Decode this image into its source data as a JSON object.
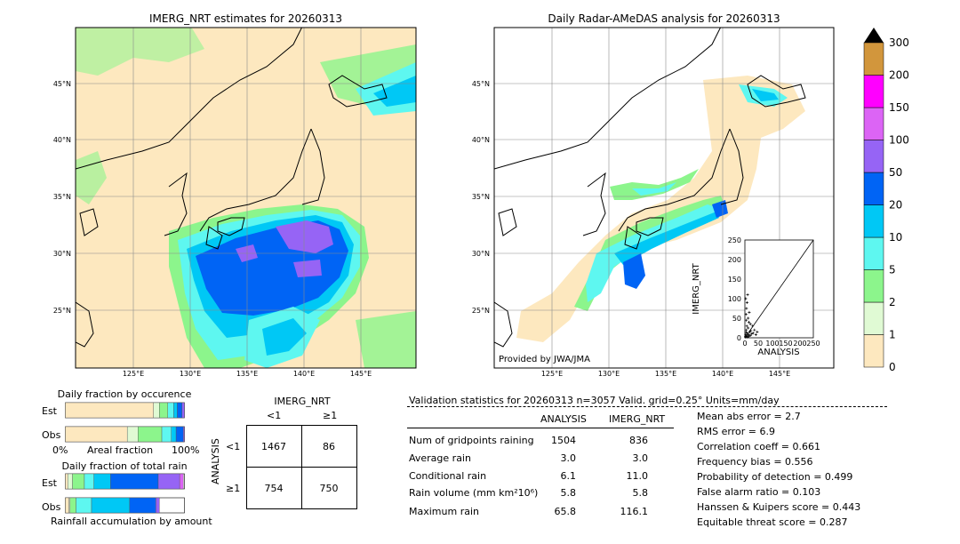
{
  "left_map": {
    "title": "IMERG_NRT estimates for 20260313",
    "lat_ticks": [
      "45°N",
      "40°N",
      "35°N",
      "30°N",
      "25°N"
    ],
    "lon_ticks": [
      "125°E",
      "130°E",
      "135°E",
      "140°E",
      "145°E"
    ]
  },
  "right_map": {
    "title": "Daily Radar-AMeDAS analysis for 20260313",
    "lat_ticks": [
      "45°N",
      "40°N",
      "35°N",
      "30°N",
      "25°N"
    ],
    "lon_ticks": [
      "125°E",
      "130°E",
      "135°E",
      "140°E",
      "145°E"
    ],
    "credit": "Provided by JWA/JMA"
  },
  "colorbar": {
    "labels": [
      "0",
      "1",
      "2",
      "5",
      "10",
      "20",
      "50",
      "100",
      "150",
      "200",
      "300"
    ],
    "colors": [
      "#fde8bf",
      "#e0fad4",
      "#8cf58c",
      "#5ef7f0",
      "#00c8f5",
      "#0064f5",
      "#9664f5",
      "#dc64f5",
      "#ff00ff",
      "#d2963c"
    ],
    "extend_color": "#000000"
  },
  "scatter": {
    "ylabel": "IMERG_NRT",
    "xlabel": "ANALYSIS",
    "ticks": [
      "0",
      "50",
      "100",
      "150",
      "200",
      "250"
    ],
    "chart_data": {
      "type": "scatter",
      "xlabel": "ANALYSIS",
      "ylabel": "IMERG_NRT",
      "xlim": [
        0,
        250
      ],
      "ylim": [
        0,
        250
      ],
      "points": [
        [
          2,
          3
        ],
        [
          3,
          8
        ],
        [
          4,
          14
        ],
        [
          5,
          20
        ],
        [
          6,
          4
        ],
        [
          7,
          30
        ],
        [
          8,
          12
        ],
        [
          10,
          5
        ],
        [
          12,
          25
        ],
        [
          14,
          8
        ],
        [
          15,
          40
        ],
        [
          18,
          15
        ],
        [
          20,
          6
        ],
        [
          22,
          18
        ],
        [
          25,
          10
        ],
        [
          28,
          30
        ],
        [
          30,
          12
        ],
        [
          35,
          20
        ],
        [
          4,
          60
        ],
        [
          6,
          75
        ],
        [
          8,
          90
        ],
        [
          10,
          110
        ],
        [
          5,
          45
        ],
        [
          12,
          50
        ],
        [
          16,
          65
        ],
        [
          3,
          100
        ],
        [
          20,
          35
        ],
        [
          40,
          8
        ],
        [
          45,
          15
        ],
        [
          2,
          2
        ],
        [
          9,
          2
        ],
        [
          15,
          3
        ]
      ]
    }
  },
  "occurrence": {
    "title": "Daily fraction by occurence",
    "rows": [
      "Est",
      "Obs"
    ],
    "axis_left": "0%",
    "axis_mid": "Areal fraction",
    "axis_right": "100%",
    "chart_data": {
      "type": "bar",
      "categories": [
        "Est",
        "Obs"
      ],
      "series": [
        {
          "values": [
            0.74,
            0.52
          ]
        },
        {
          "values": [
            0.05,
            0.09
          ]
        },
        {
          "values": [
            0.07,
            0.2
          ]
        },
        {
          "values": [
            0.05,
            0.08
          ]
        },
        {
          "values": [
            0.03,
            0.04
          ]
        },
        {
          "values": [
            0.04,
            0.06
          ]
        },
        {
          "values": [
            0.02,
            0.01
          ]
        }
      ]
    }
  },
  "accumulation": {
    "title": "Daily fraction of total rain",
    "rows": [
      "Est",
      "Obs"
    ],
    "footer": "Rainfall accumulation by amount",
    "chart_data": {
      "type": "bar",
      "categories": [
        "Est",
        "Obs"
      ],
      "series": [
        {
          "values": [
            0.02,
            0.03
          ]
        },
        {
          "values": [
            0.04,
            0.01
          ]
        },
        {
          "values": [
            0.1,
            0.05
          ]
        },
        {
          "values": [
            0.08,
            0.13
          ]
        },
        {
          "values": [
            0.14,
            0.32
          ]
        },
        {
          "values": [
            0.4,
            0.22
          ]
        },
        {
          "values": [
            0.18,
            0.03
          ]
        },
        {
          "values": [
            0.03,
            0.0
          ]
        }
      ]
    }
  },
  "contingency": {
    "title": "IMERG_NRT",
    "col_lt": "<1",
    "col_ge": "≥1",
    "row_label": "ANALYSIS",
    "row_lt": "<1",
    "row_ge": "≥1",
    "cells": [
      "1467",
      "86",
      "754",
      "750"
    ]
  },
  "validation": {
    "header": "Validation statistics for 20260313  n=3057 Valid. grid=0.25° Units=mm/day",
    "col_analysis": "ANALYSIS",
    "col_imerg": "IMERG_NRT",
    "rows": [
      {
        "label": "Num of gridpoints raining",
        "analysis": "1504",
        "imerg": "836"
      },
      {
        "label": "Average rain",
        "analysis": "3.0",
        "imerg": "3.0"
      },
      {
        "label": "Conditional rain",
        "analysis": "6.1",
        "imerg": "11.0"
      },
      {
        "label": "Rain volume (mm km²10⁶)",
        "analysis": "5.8",
        "imerg": "5.8"
      },
      {
        "label": "Maximum rain",
        "analysis": "65.8",
        "imerg": "116.1"
      }
    ],
    "scores": [
      "Mean abs error =    2.7",
      "RMS error =    6.9",
      "Correlation coeff =  0.661",
      "Frequency bias =  0.556",
      "Probability of detection =  0.499",
      "False alarm ratio =  0.103",
      "Hanssen & Kuipers score =  0.443",
      "Equitable threat score =  0.287"
    ]
  }
}
